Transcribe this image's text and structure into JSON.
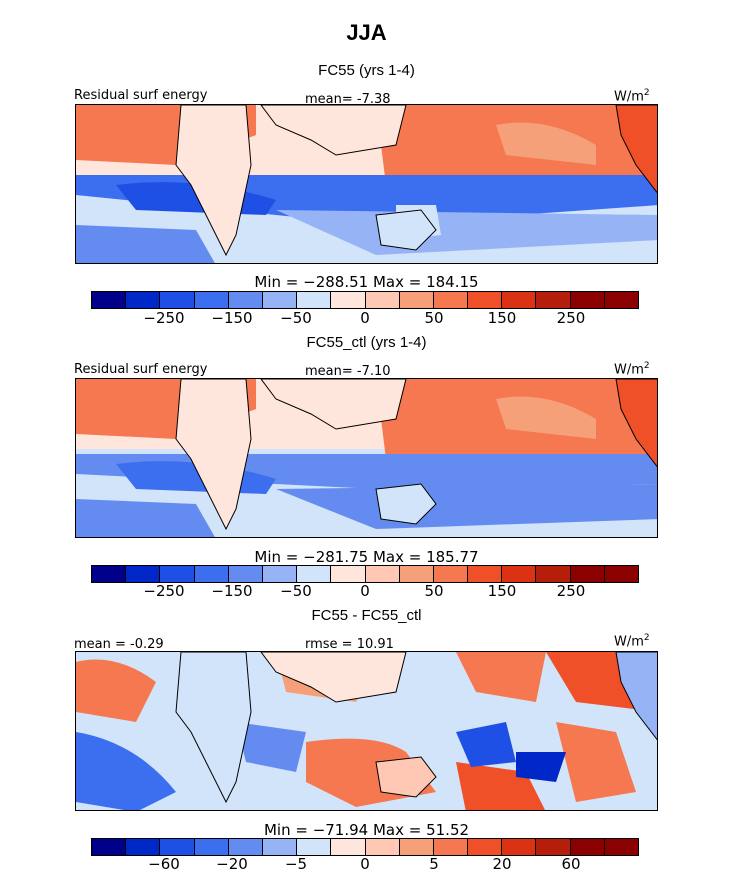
{
  "chart_data": {
    "type": "heatmap",
    "title": "JJA",
    "colors": [
      "#00008b",
      "#0028c8",
      "#1e50e6",
      "#3c6ef0",
      "#648cf0",
      "#96b4f5",
      "#d2e4fa",
      "#ffe6dc",
      "#ffc8b4",
      "#f5a078",
      "#f57850",
      "#f05028",
      "#dc3214",
      "#b41e0a",
      "#8b0000"
    ],
    "panels": [
      {
        "subtitle": "FC55 (yrs 1-4)",
        "top_left_label": "Residual surf energy",
        "mean_label": "mean=  -7.38",
        "units": "W/m",
        "units_sup": "2",
        "min_max": "Min = −288.51 Max = 184.15",
        "colorbar_ticks": [
          "−250",
          "−150",
          "−50",
          "0",
          "50",
          "150",
          "250"
        ],
        "mean": -7.38,
        "min": -288.51,
        "max": 184.15
      },
      {
        "subtitle": "FC55_ctl (yrs 1-4)",
        "top_left_label": "Residual surf energy",
        "mean_label": "mean=  -7.10",
        "units": "W/m",
        "units_sup": "2",
        "min_max": "Min = −281.75 Max = 185.77",
        "colorbar_ticks": [
          "−250",
          "−150",
          "−50",
          "0",
          "50",
          "150",
          "250"
        ],
        "mean": -7.1,
        "min": -281.75,
        "max": 185.77
      },
      {
        "subtitle": "FC55 - FC55_ctl",
        "top_left_label": "mean =  -0.29",
        "mean_label": "rmse =  10.91",
        "units": "W/m",
        "units_sup": "2",
        "min_max": "Min = −71.94 Max =  51.52",
        "colorbar_ticks": [
          "−60",
          "−20",
          "−5",
          "0",
          "5",
          "20",
          "60"
        ],
        "mean": -0.29,
        "rmse": 10.91,
        "min": -71.94,
        "max": 51.52
      }
    ]
  }
}
